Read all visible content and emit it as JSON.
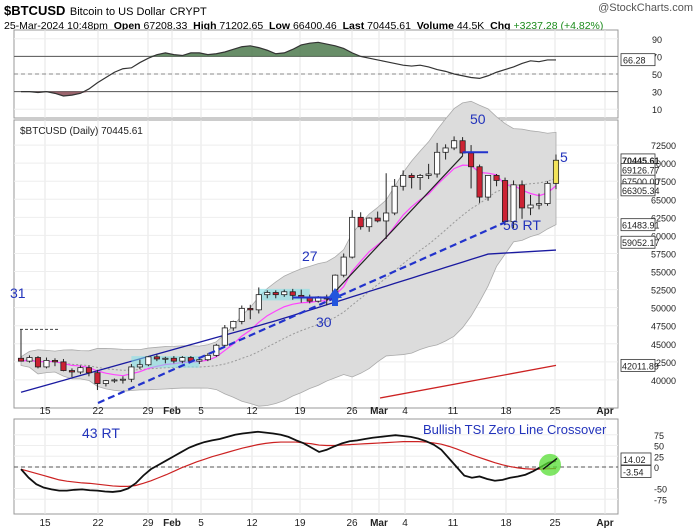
{
  "header": {
    "symbol": "$BTCUSD",
    "name": "Bitcoin to US Dollar",
    "exchange": "CRYPT",
    "datetime": "25-Mar-2024 10:48pm",
    "open_label": "Open",
    "open": "67208.33",
    "high_label": "High",
    "high": "71202.65",
    "low_label": "Low",
    "low": "66400.46",
    "last_label": "Last",
    "last": "70445.61",
    "volume_label": "Volume",
    "volume": "44.5K",
    "chg_label": "Chg",
    "chg": "+3237.28 (+4.82%)",
    "watermark": "@StockCharts.com"
  },
  "colors": {
    "up_candle": "#ffffff",
    "down_candle": "#cc2233",
    "last_candle": "#f2e35a",
    "ema_blue": "#1a1aa0",
    "sma_red": "#cc2222",
    "keltner": "#ff44ff",
    "band_fill": "#dcdcdc",
    "rsi_fill": "#4e7a4e",
    "annotation": "#2233bb"
  },
  "chart_data": [
    {
      "type": "line",
      "name": "rsi-panel",
      "ylim": [
        0,
        100
      ],
      "tick_labels": [
        "90",
        "70",
        "50",
        "30",
        "10"
      ],
      "value_label": "66.28",
      "values": [
        30,
        30,
        29,
        30,
        28,
        25,
        26,
        28,
        33,
        40,
        46,
        52,
        56,
        57,
        63,
        68,
        72,
        74,
        72,
        71,
        74,
        74,
        72,
        73,
        75,
        78,
        81,
        82,
        80,
        77,
        73,
        74,
        78,
        83,
        85,
        86,
        84,
        82,
        79,
        74,
        70,
        68,
        66,
        64,
        62,
        60,
        59,
        60,
        58,
        55,
        53,
        50,
        48,
        46,
        45,
        48,
        52,
        55,
        58,
        62,
        65,
        64,
        66,
        66
      ]
    },
    {
      "type": "candlestick",
      "name": "price-panel",
      "title": "$BTCUSD (Daily) 70445.61",
      "ylim": [
        37500,
        75000
      ],
      "y_ticks": [
        "72500",
        "70000",
        "67500",
        "65000",
        "62500",
        "60000",
        "57500",
        "55000",
        "52500",
        "50000",
        "47500",
        "45000",
        "42500",
        "40000"
      ],
      "x_labels": [
        "15",
        "22",
        "29",
        "Feb",
        "5",
        "12",
        "19",
        "26",
        "Mar",
        "4",
        "11",
        "18",
        "25",
        "Apr"
      ],
      "side_labels": [
        "70445.61",
        "69126.77",
        "67500.00",
        "66305.34",
        "61483.91",
        "59052.17",
        "42011.89"
      ],
      "candles": [
        {
          "o": 43000,
          "h": 47000,
          "l": 42600,
          "c": 42600
        },
        {
          "o": 42600,
          "h": 43400,
          "l": 42400,
          "c": 43100
        },
        {
          "o": 43100,
          "h": 43300,
          "l": 41600,
          "c": 41800
        },
        {
          "o": 41800,
          "h": 43100,
          "l": 41600,
          "c": 42700
        },
        {
          "o": 42700,
          "h": 43000,
          "l": 41900,
          "c": 42500
        },
        {
          "o": 42500,
          "h": 42900,
          "l": 41200,
          "c": 41300
        },
        {
          "o": 41300,
          "h": 41600,
          "l": 40400,
          "c": 41100
        },
        {
          "o": 41100,
          "h": 42000,
          "l": 40800,
          "c": 41700
        },
        {
          "o": 41700,
          "h": 42000,
          "l": 40500,
          "c": 41000
        },
        {
          "o": 41000,
          "h": 41400,
          "l": 38600,
          "c": 39500
        },
        {
          "o": 39500,
          "h": 40000,
          "l": 39100,
          "c": 39900
        },
        {
          "o": 39900,
          "h": 40200,
          "l": 39600,
          "c": 40000
        },
        {
          "o": 40000,
          "h": 40500,
          "l": 39500,
          "c": 40100
        },
        {
          "o": 40100,
          "h": 42200,
          "l": 39700,
          "c": 41800
        },
        {
          "o": 41800,
          "h": 42800,
          "l": 41500,
          "c": 42100
        },
        {
          "o": 42100,
          "h": 43300,
          "l": 41900,
          "c": 43200
        },
        {
          "o": 43200,
          "h": 43500,
          "l": 42600,
          "c": 42900
        },
        {
          "o": 42900,
          "h": 43200,
          "l": 42300,
          "c": 43000
        },
        {
          "o": 43000,
          "h": 43300,
          "l": 42300,
          "c": 42600
        },
        {
          "o": 42600,
          "h": 43300,
          "l": 42300,
          "c": 43100
        },
        {
          "o": 43100,
          "h": 43300,
          "l": 42400,
          "c": 42600
        },
        {
          "o": 42600,
          "h": 43200,
          "l": 42200,
          "c": 42800
        },
        {
          "o": 42800,
          "h": 43700,
          "l": 42600,
          "c": 43400
        },
        {
          "o": 43400,
          "h": 45000,
          "l": 43200,
          "c": 44800
        },
        {
          "o": 44800,
          "h": 47600,
          "l": 44600,
          "c": 47200
        },
        {
          "o": 47200,
          "h": 48200,
          "l": 46800,
          "c": 48100
        },
        {
          "o": 48100,
          "h": 50300,
          "l": 47700,
          "c": 49900
        },
        {
          "o": 49900,
          "h": 50400,
          "l": 48400,
          "c": 49700
        },
        {
          "o": 49700,
          "h": 52800,
          "l": 49200,
          "c": 51800
        },
        {
          "o": 51800,
          "h": 52400,
          "l": 51300,
          "c": 52100
        },
        {
          "o": 52100,
          "h": 52400,
          "l": 51300,
          "c": 51800
        },
        {
          "o": 51800,
          "h": 52500,
          "l": 51500,
          "c": 52200
        },
        {
          "o": 52200,
          "h": 52600,
          "l": 51100,
          "c": 51700
        },
        {
          "o": 51700,
          "h": 52500,
          "l": 50700,
          "c": 51400
        },
        {
          "o": 51400,
          "h": 51800,
          "l": 50600,
          "c": 50900
        },
        {
          "o": 50900,
          "h": 51600,
          "l": 50700,
          "c": 51500
        },
        {
          "o": 51500,
          "h": 51800,
          "l": 50300,
          "c": 51200
        },
        {
          "o": 51200,
          "h": 54600,
          "l": 50900,
          "c": 54500
        },
        {
          "o": 54500,
          "h": 57500,
          "l": 54200,
          "c": 57000
        },
        {
          "o": 57000,
          "h": 63500,
          "l": 56800,
          "c": 62500
        },
        {
          "o": 62500,
          "h": 63200,
          "l": 60800,
          "c": 61200
        },
        {
          "o": 61200,
          "h": 62500,
          "l": 60500,
          "c": 62400
        },
        {
          "o": 62400,
          "h": 63300,
          "l": 61800,
          "c": 62000
        },
        {
          "o": 62000,
          "h": 68600,
          "l": 59500,
          "c": 63100
        },
        {
          "o": 63100,
          "h": 67800,
          "l": 62800,
          "c": 66800
        },
        {
          "o": 66800,
          "h": 69000,
          "l": 66200,
          "c": 68300
        },
        {
          "o": 68300,
          "h": 68600,
          "l": 66500,
          "c": 68000
        },
        {
          "o": 68000,
          "h": 68500,
          "l": 66300,
          "c": 68300
        },
        {
          "o": 68300,
          "h": 69900,
          "l": 67800,
          "c": 68500
        },
        {
          "o": 68500,
          "h": 72800,
          "l": 68000,
          "c": 71500
        },
        {
          "o": 71500,
          "h": 72600,
          "l": 70500,
          "c": 72100
        },
        {
          "o": 72100,
          "h": 73700,
          "l": 71800,
          "c": 73100
        },
        {
          "o": 73100,
          "h": 73600,
          "l": 71000,
          "c": 71400
        },
        {
          "o": 71400,
          "h": 72500,
          "l": 66500,
          "c": 69500
        },
        {
          "o": 69500,
          "h": 69800,
          "l": 64500,
          "c": 65300
        },
        {
          "o": 65300,
          "h": 68300,
          "l": 64800,
          "c": 68300
        },
        {
          "o": 68300,
          "h": 68500,
          "l": 66800,
          "c": 67600
        },
        {
          "o": 67600,
          "h": 68000,
          "l": 61500,
          "c": 61900
        },
        {
          "o": 61900,
          "h": 67600,
          "l": 61000,
          "c": 67000
        },
        {
          "o": 67000,
          "h": 67600,
          "l": 62300,
          "c": 63800
        },
        {
          "o": 63800,
          "h": 65600,
          "l": 62800,
          "c": 64200
        },
        {
          "o": 64200,
          "h": 65800,
          "l": 63600,
          "c": 64400
        },
        {
          "o": 64400,
          "h": 67500,
          "l": 64100,
          "c": 67200
        },
        {
          "o": 67200,
          "h": 71200,
          "l": 66400,
          "c": 70400
        }
      ]
    },
    {
      "type": "line",
      "name": "tsi-panel",
      "ylim": [
        -100,
        100
      ],
      "tick_labels": [
        "75",
        "50",
        "25",
        "0",
        "-50",
        "-75"
      ],
      "value_labels": [
        "14.02",
        "-3.54"
      ],
      "series": [
        {
          "values": [
            -5,
            -25,
            -40,
            -48,
            -52,
            -55,
            -55,
            -53,
            -52,
            -54,
            -55,
            -57,
            -58,
            -56,
            -50,
            -38,
            -20,
            -5,
            5,
            15,
            25,
            35,
            45,
            52,
            58,
            62,
            65,
            70,
            75,
            78,
            80,
            82,
            80,
            78,
            75,
            70,
            62,
            55,
            45,
            35,
            40,
            48,
            55,
            60,
            62,
            65,
            68,
            70,
            72,
            74,
            72,
            70,
            66,
            60,
            52,
            40,
            20,
            0,
            -20,
            -25,
            -22,
            -28,
            -32,
            -30,
            -25,
            -22,
            -18,
            -10,
            0,
            10,
            14
          ]
        },
        {
          "values": [
            -5,
            -10,
            -15,
            -20,
            -25,
            -30,
            -33,
            -35,
            -37,
            -38,
            -40,
            -42,
            -44,
            -45,
            -45,
            -43,
            -38,
            -32,
            -25,
            -18,
            -10,
            -2,
            5,
            12,
            18,
            24,
            29,
            34,
            39,
            44,
            48,
            52,
            55,
            57,
            58,
            58,
            58,
            56,
            54,
            51,
            50,
            50,
            51,
            52,
            53,
            54,
            55,
            56,
            57,
            58,
            59,
            59,
            59,
            58,
            56,
            53,
            48,
            42,
            35,
            28,
            22,
            16,
            10,
            5,
            1,
            -2,
            -4,
            -5,
            -5,
            -4,
            -3.5
          ]
        }
      ]
    }
  ],
  "annotations": {
    "peak_50": "50",
    "right_5": "5",
    "mid_27": "27",
    "left_31": "31",
    "arrow_30": "30",
    "rt_56": "56 RT",
    "rt_43": "43 RT",
    "tsi_note": "Bullish TSI Zero Line Crossover"
  }
}
